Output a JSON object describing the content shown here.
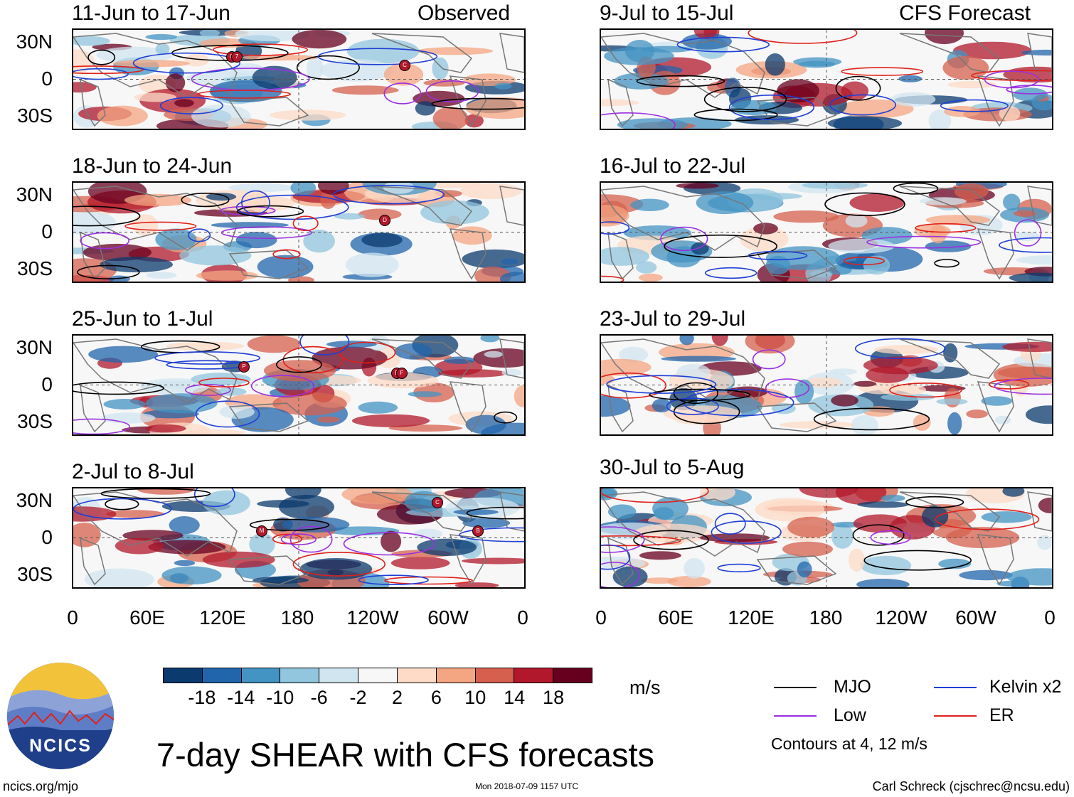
{
  "panels": [
    {
      "title": "11-Jun to 17-Jun",
      "header_right": "Observed"
    },
    {
      "title": "9-Jul to 15-Jul",
      "header_right": "CFS Forecast"
    },
    {
      "title": "18-Jun to 24-Jun",
      "header_right": ""
    },
    {
      "title": "16-Jul to 22-Jul",
      "header_right": ""
    },
    {
      "title": "25-Jun to 1-Jul",
      "header_right": ""
    },
    {
      "title": "23-Jul to 29-Jul",
      "header_right": ""
    },
    {
      "title": "2-Jul to 8-Jul",
      "header_right": ""
    },
    {
      "title": "30-Jul to 5-Aug",
      "header_right": ""
    }
  ],
  "y_ticks": [
    "30N",
    "0",
    "30S"
  ],
  "x_ticks": [
    "0",
    "60E",
    "120E",
    "180",
    "120W",
    "60W",
    "0"
  ],
  "colorbar": {
    "ticks": [
      "-18",
      "-14",
      "-10",
      "-6",
      "-2",
      "2",
      "6",
      "10",
      "14",
      "18"
    ],
    "colors": [
      "#0b3a6e",
      "#2166ac",
      "#4393c3",
      "#92c5de",
      "#d1e5f0",
      "#f7f7f7",
      "#fddbc7",
      "#f4a582",
      "#d6604d",
      "#b2182b",
      "#67001f"
    ],
    "units": "m/s"
  },
  "title": "7-day SHEAR with CFS forecasts",
  "legend": {
    "items": [
      {
        "label": "MJO",
        "color": "#000000"
      },
      {
        "label": "Kelvin x2",
        "color": "#1f3fd6"
      },
      {
        "label": "Low",
        "color": "#9b30e0"
      },
      {
        "label": "ER",
        "color": "#e0201a"
      }
    ],
    "contour_note": "Contours at 4, 12 m/s"
  },
  "logo": {
    "text": "NCICS"
  },
  "footer": {
    "left": "ncics.org/mjo",
    "middle": "Mon 2018-07-09 1157 UTC",
    "right": "Carl Schreck (cjschrec@ncsu.edu)"
  },
  "storm_markers": [
    {
      "panel": 0,
      "labels": [
        "G",
        "7"
      ]
    },
    {
      "panel": 0,
      "labels": [
        "C"
      ]
    },
    {
      "panel": 2,
      "labels": [
        "D"
      ]
    },
    {
      "panel": 4,
      "labels": [
        "P"
      ]
    },
    {
      "panel": 4,
      "labels": [
        "E",
        "F"
      ]
    },
    {
      "panel": 6,
      "labels": [
        "M"
      ]
    },
    {
      "panel": 6,
      "labels": [
        "C"
      ]
    },
    {
      "panel": 6,
      "labels": [
        "B"
      ]
    }
  ]
}
